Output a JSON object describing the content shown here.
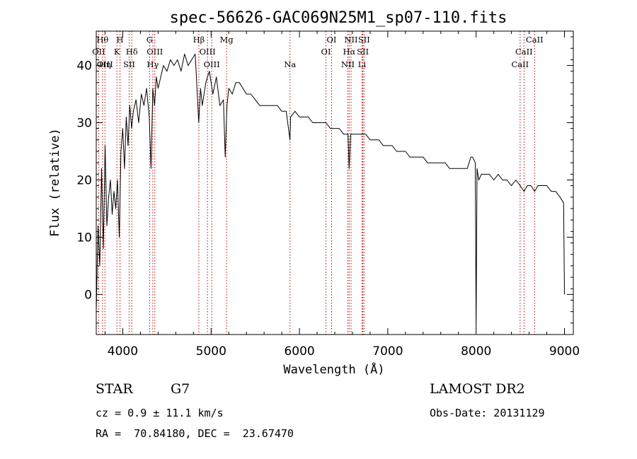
{
  "chart_data": {
    "type": "line",
    "title": "spec-56626-GAC069N25M1_sp07-110.fits",
    "xlabel": "Wavelength (Å)",
    "ylabel": "Flux (relative)",
    "xlim": [
      3700,
      9100
    ],
    "ylim": [
      -7,
      46
    ],
    "xticks": [
      4000,
      5000,
      6000,
      7000,
      8000,
      9000
    ],
    "yticks": [
      0,
      10,
      20,
      30,
      40
    ],
    "series": [
      {
        "name": "flux",
        "x": [
          3700,
          3720,
          3740,
          3760,
          3780,
          3800,
          3820,
          3840,
          3860,
          3880,
          3900,
          3920,
          3940,
          3960,
          3980,
          4000,
          4020,
          4040,
          4060,
          4080,
          4100,
          4120,
          4150,
          4180,
          4210,
          4240,
          4270,
          4300,
          4320,
          4340,
          4360,
          4380,
          4400,
          4430,
          4460,
          4500,
          4540,
          4580,
          4620,
          4660,
          4700,
          4740,
          4780,
          4820,
          4860,
          4880,
          4900,
          4940,
          4980,
          5020,
          5060,
          5100,
          5140,
          5160,
          5180,
          5200,
          5240,
          5280,
          5320,
          5360,
          5400,
          5450,
          5500,
          5550,
          5600,
          5650,
          5700,
          5750,
          5800,
          5850,
          5893,
          5900,
          5950,
          6000,
          6050,
          6100,
          6150,
          6200,
          6250,
          6300,
          6350,
          6400,
          6450,
          6500,
          6550,
          6563,
          6580,
          6620,
          6680,
          6750,
          6800,
          6850,
          6900,
          6950,
          7000,
          7050,
          7100,
          7150,
          7200,
          7250,
          7300,
          7350,
          7400,
          7450,
          7500,
          7550,
          7600,
          7650,
          7700,
          7750,
          7800,
          7850,
          7900,
          7940,
          7960,
          7990,
          8000,
          8010,
          8030,
          8060,
          8100,
          8150,
          8200,
          8250,
          8300,
          8350,
          8400,
          8450,
          8498,
          8542,
          8580,
          8620,
          8662,
          8700,
          8750,
          8800,
          8850,
          8900,
          8950,
          8990,
          9000
        ],
        "values": [
          -3,
          12,
          5,
          22,
          8,
          26,
          12,
          17,
          20,
          14,
          18,
          15,
          20,
          10,
          25,
          29,
          22,
          31,
          26,
          33,
          29,
          32,
          34,
          30,
          35,
          33,
          36,
          31,
          22,
          36,
          33,
          38,
          36,
          38,
          40,
          39,
          41,
          40,
          41,
          39,
          42,
          40,
          41,
          42,
          30,
          36,
          33,
          37,
          39,
          35,
          38,
          33,
          34,
          24,
          33,
          36,
          35,
          37,
          37,
          36,
          35,
          35,
          34,
          33,
          33,
          33,
          33,
          33,
          32,
          32,
          27,
          31,
          32,
          31,
          31,
          31,
          30,
          30,
          30,
          30,
          29,
          29,
          29,
          28,
          28,
          22,
          28,
          28,
          28,
          28,
          27,
          27,
          27,
          26,
          26,
          26,
          25,
          25,
          25,
          24,
          24,
          24,
          24,
          23,
          23,
          23,
          23,
          23,
          22,
          22,
          22,
          22,
          22,
          24,
          24,
          23,
          -6,
          22,
          20,
          21,
          21,
          21,
          20,
          21,
          20,
          20,
          19,
          20,
          19,
          18,
          19,
          19,
          18,
          19,
          19,
          19,
          18,
          18,
          17,
          16,
          0
        ]
      }
    ],
    "lines": [
      {
        "x": 3771,
        "labels": [
          "Hθ"
        ],
        "row": 0
      },
      {
        "x": 3727,
        "labels": [
          "OII"
        ],
        "row": 1
      },
      {
        "x": 3798,
        "labels": [
          "OIII",
          "Hη"
        ],
        "row": 2
      },
      {
        "x": 3934,
        "labels": [
          "K"
        ],
        "row": 1
      },
      {
        "x": 3969,
        "labels": [
          "H"
        ],
        "row": 0
      },
      {
        "x": 4102,
        "labels": [
          "Hδ"
        ],
        "row": 1
      },
      {
        "x": 4072,
        "labels": [
          "SII"
        ],
        "row": 2
      },
      {
        "x": 4304,
        "labels": [
          "G"
        ],
        "row": 0
      },
      {
        "x": 4340,
        "labels": [
          "Hγ"
        ],
        "row": 2
      },
      {
        "x": 4363,
        "labels": [
          "OIII"
        ],
        "row": 1
      },
      {
        "x": 4861,
        "labels": [
          "Hβ"
        ],
        "row": 0
      },
      {
        "x": 4959,
        "labels": [
          "OIII"
        ],
        "row": 1
      },
      {
        "x": 5007,
        "labels": [
          "OIII"
        ],
        "row": 2
      },
      {
        "x": 5175,
        "labels": [
          "Mg"
        ],
        "row": 0
      },
      {
        "x": 5893,
        "labels": [
          "Na"
        ],
        "row": 2
      },
      {
        "x": 6300,
        "labels": [
          "OI"
        ],
        "row": 1
      },
      {
        "x": 6364,
        "labels": [
          "OI"
        ],
        "row": 0
      },
      {
        "x": 6548,
        "labels": [
          "NII"
        ],
        "row": 2
      },
      {
        "x": 6563,
        "labels": [
          "Hα"
        ],
        "row": 1
      },
      {
        "x": 6584,
        "labels": [
          "NII"
        ],
        "row": 0
      },
      {
        "x": 6708,
        "labels": [
          "Li"
        ],
        "row": 2
      },
      {
        "x": 6717,
        "labels": [
          "SII"
        ],
        "row": 1
      },
      {
        "x": 6731,
        "labels": [
          "SII"
        ],
        "row": 0
      },
      {
        "x": 8498,
        "labels": [
          "CaII"
        ],
        "row": 2
      },
      {
        "x": 8542,
        "labels": [
          "CaII"
        ],
        "row": 1
      },
      {
        "x": 8662,
        "labels": [
          "CaII"
        ],
        "row": 0
      }
    ],
    "colors": {
      "line": "#000000",
      "marker": "#c00000"
    }
  },
  "info": {
    "class_label": "STAR",
    "subclass": "G7",
    "cz": "cz = 0.9 ± 11.1 km/s",
    "coords": "RA =  70.84180, DEC =  23.67470",
    "survey": "LAMOST DR2",
    "obs_date": "Obs-Date: 20131129"
  }
}
